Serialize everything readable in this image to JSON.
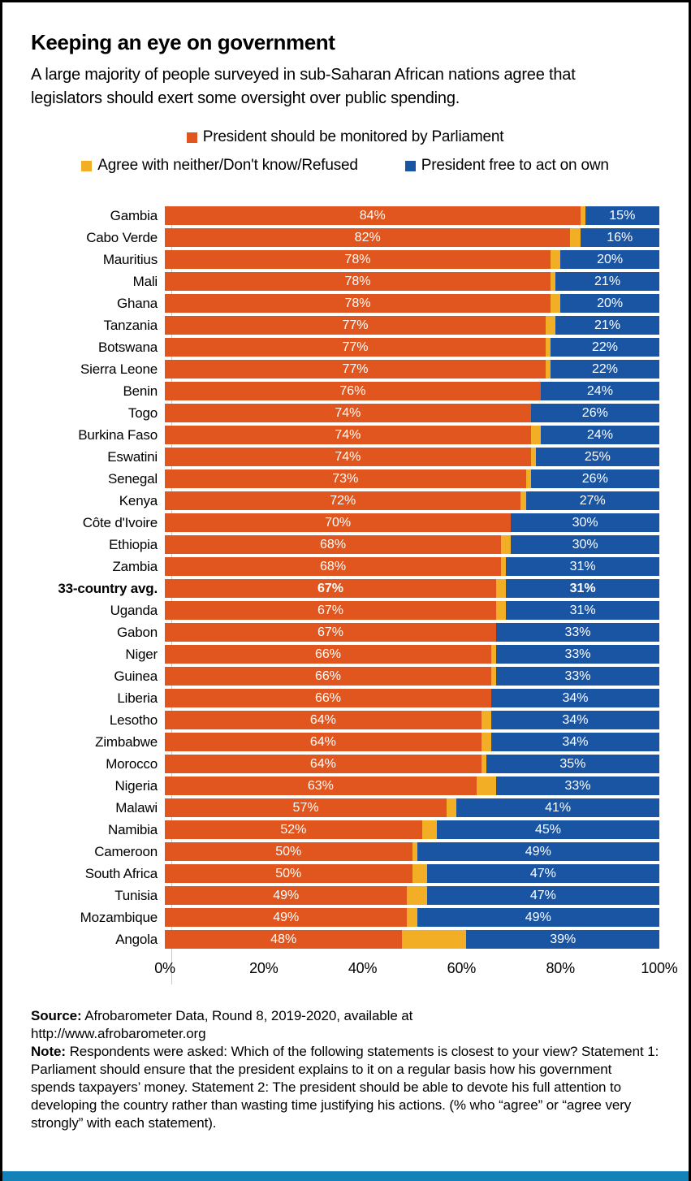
{
  "title": "Keeping an eye on government",
  "subtitle_lines": [
    "A large majority of people surveyed in sub-Saharan African nations agree that",
    "legislators should exert some oversight over public spending."
  ],
  "legend": [
    {
      "label": "President should be monitored by Parliament",
      "color": "#E1561E"
    },
    {
      "label": "Agree with neither/Don't know/Refused",
      "color": "#F2AE25"
    },
    {
      "label": "President free to act on own",
      "color": "#1A55A4"
    }
  ],
  "colors": {
    "orange": "#E1561E",
    "yellow": "#F2AE25",
    "blue": "#1A55A4",
    "strip": "#1282B8",
    "axis_line": "#c9c9c9"
  },
  "chart_data": {
    "type": "bar",
    "orientation": "horizontal",
    "stacked": true,
    "unit": "%",
    "xlim": [
      0,
      100
    ],
    "x_ticks": [
      "0%",
      "20%",
      "40%",
      "60%",
      "80%",
      "100%"
    ],
    "legend_position": "top",
    "grid": false,
    "highlight_category": "33-country avg.",
    "categories": [
      "Gambia",
      "Cabo Verde",
      "Mauritius",
      "Mali",
      "Ghana",
      "Tanzania",
      "Botswana",
      "Sierra Leone",
      "Benin",
      "Togo",
      "Burkina Faso",
      "Eswatini",
      "Senegal",
      "Kenya",
      "Côte d'Ivoire",
      "Ethiopia",
      "Zambia",
      "33-country avg.",
      "Uganda",
      "Gabon",
      "Niger",
      "Guinea",
      "Liberia",
      "Lesotho",
      "Zimbabwe",
      "Morocco",
      "Nigeria",
      "Malawi",
      "Namibia",
      "Cameroon",
      "South Africa",
      "Tunisia",
      "Mozambique",
      "Angola"
    ],
    "series": [
      {
        "name": "President should be monitored by Parliament",
        "color": "#E1561E",
        "values": [
          84,
          82,
          78,
          78,
          78,
          77,
          77,
          77,
          76,
          74,
          74,
          74,
          73,
          72,
          70,
          68,
          68,
          67,
          67,
          67,
          66,
          66,
          66,
          64,
          64,
          64,
          63,
          57,
          52,
          50,
          50,
          49,
          49,
          48
        ]
      },
      {
        "name": "Agree with neither/Don't know/Refused",
        "color": "#F2AE25",
        "values": [
          1,
          2,
          2,
          1,
          2,
          2,
          1,
          1,
          0,
          0,
          2,
          1,
          1,
          1,
          0,
          2,
          1,
          2,
          2,
          0,
          1,
          1,
          0,
          2,
          2,
          1,
          4,
          2,
          3,
          1,
          3,
          4,
          2,
          13
        ]
      },
      {
        "name": "President free to act on own",
        "color": "#1A55A4",
        "values": [
          15,
          16,
          20,
          21,
          20,
          21,
          22,
          22,
          24,
          26,
          24,
          25,
          26,
          27,
          30,
          30,
          31,
          31,
          31,
          33,
          33,
          33,
          34,
          34,
          34,
          35,
          33,
          41,
          45,
          49,
          47,
          47,
          49,
          39
        ]
      }
    ]
  },
  "footer": {
    "source_label": "Source:",
    "source_line1": " Afrobarometer Data, Round 8, 2019-2020, available at",
    "source_line2": "http://www.afrobarometer.org",
    "note_label": "Note:",
    "note_text": " Respondents were asked: Which of the following statements is closest to your view? Statement 1: Parliament should ensure that the president explains to it on a regular basis how his government spends taxpayers’ money. Statement 2: The president should be able to devote his full attention to developing the country rather than wasting time justifying his actions. (% who “agree” or “agree very strongly” with each statement)."
  }
}
